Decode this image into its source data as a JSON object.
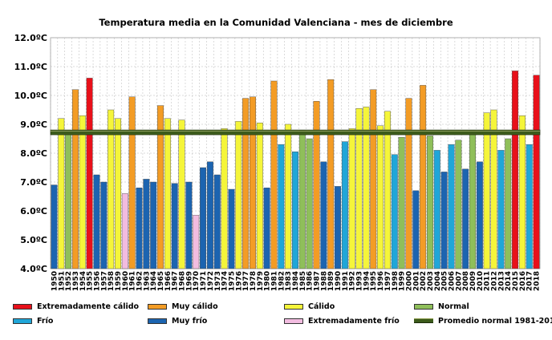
{
  "chart_data": {
    "type": "bar",
    "title": "Temperatura media en la Comunidad Valenciana - mes de diciembre",
    "ylim": [
      4.0,
      12.0
    ],
    "yticks": [
      "4.0ºC",
      "5.0ºC",
      "6.0ºC",
      "7.0ºC",
      "8.0ºC",
      "9.0ºC",
      "10.0ºC",
      "11.0ºC",
      "12.0ºC"
    ],
    "normal_value": 8.72,
    "categories": [
      "1950",
      "1951",
      "1952",
      "1953",
      "1954",
      "1955",
      "1956",
      "1957",
      "1958",
      "1959",
      "1960",
      "1961",
      "1962",
      "1963",
      "1964",
      "1965",
      "1966",
      "1967",
      "1968",
      "1969",
      "1970",
      "1971",
      "1972",
      "1973",
      "1974",
      "1975",
      "1976",
      "1977",
      "1978",
      "1979",
      "1980",
      "1981",
      "1982",
      "1983",
      "1984",
      "1985",
      "1986",
      "1987",
      "1988",
      "1989",
      "1990",
      "1991",
      "1992",
      "1993",
      "1994",
      "1995",
      "1996",
      "1997",
      "1998",
      "1999",
      "2000",
      "2001",
      "2002",
      "2003",
      "2004",
      "2005",
      "2006",
      "2007",
      "2008",
      "2009",
      "2010",
      "2011",
      "2012",
      "2013",
      "2014",
      "2015",
      "2016",
      "2017",
      "2018"
    ],
    "values": [
      6.9,
      9.2,
      8.8,
      10.2,
      9.3,
      10.6,
      7.25,
      7.0,
      9.5,
      9.2,
      6.6,
      9.95,
      6.8,
      7.1,
      7.0,
      9.65,
      9.2,
      6.95,
      9.15,
      7.0,
      5.85,
      7.5,
      7.7,
      7.25,
      8.85,
      6.75,
      9.1,
      9.9,
      9.95,
      9.05,
      6.8,
      10.5,
      8.3,
      9.0,
      8.05,
      8.8,
      8.5,
      9.8,
      7.7,
      10.55,
      6.85,
      8.4,
      8.85,
      9.55,
      9.6,
      10.2,
      8.95,
      9.45,
      7.95,
      8.55,
      9.9,
      6.7,
      10.35,
      8.6,
      8.1,
      7.35,
      8.3,
      8.45,
      7.45,
      8.8,
      7.7,
      9.4,
      9.5,
      8.1,
      8.5,
      10.85,
      9.3,
      8.3,
      10.7
    ],
    "classes": [
      "mf",
      "c",
      "n",
      "mc",
      "c",
      "ec",
      "mf",
      "mf",
      "c",
      "c",
      "ef",
      "mc",
      "mf",
      "mf",
      "mf",
      "mc",
      "c",
      "mf",
      "c",
      "mf",
      "ef",
      "mf",
      "mf",
      "mf",
      "c",
      "mf",
      "c",
      "mc",
      "mc",
      "c",
      "mf",
      "mc",
      "f",
      "c",
      "f",
      "n",
      "n",
      "mc",
      "mf",
      "mc",
      "mf",
      "f",
      "c",
      "c",
      "c",
      "mc",
      "c",
      "c",
      "f",
      "n",
      "mc",
      "mf",
      "mc",
      "n",
      "f",
      "mf",
      "f",
      "n",
      "mf",
      "n",
      "mf",
      "c",
      "c",
      "f",
      "n",
      "ec",
      "c",
      "f",
      "ec"
    ],
    "legend": [
      {
        "key": "ec",
        "label": "Extremadamente cálido"
      },
      {
        "key": "mc",
        "label": "Muy cálido"
      },
      {
        "key": "c",
        "label": "Cálido"
      },
      {
        "key": "n",
        "label": "Normal"
      },
      {
        "key": "f",
        "label": "Frío"
      },
      {
        "key": "mf",
        "label": "Muy frío"
      },
      {
        "key": "ef",
        "label": "Extremadamente frío"
      },
      {
        "key": "avg",
        "label": "Promedio normal 1981-2010"
      }
    ]
  },
  "colors": {
    "ec": "#e8101a",
    "mc": "#f39c25",
    "c": "#f5f53a",
    "n": "#8fbf5a",
    "f": "#20a6d8",
    "mf": "#1c64b0",
    "ef": "#f2bce0",
    "avg": "#3d5c1c",
    "grid": "#b8b8b8"
  }
}
